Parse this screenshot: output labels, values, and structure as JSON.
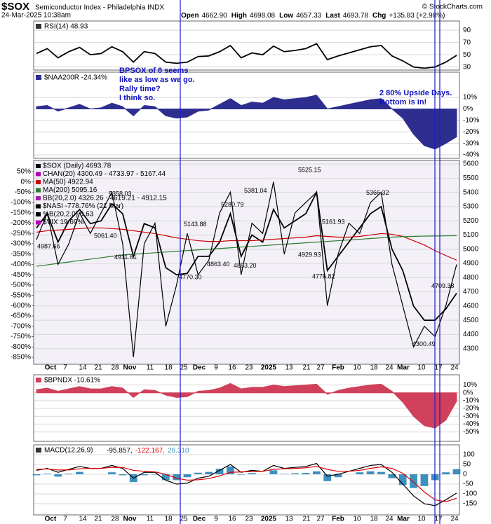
{
  "header": {
    "symbol": "$SOX",
    "name": "Semiconductor Index - Philadelphia INDX",
    "timestamp": "24-Mar-2025 10:38am",
    "quote": [
      {
        "label": "Open",
        "value": "4662.90"
      },
      {
        "label": "High",
        "value": "4698.08"
      },
      {
        "label": "Low",
        "value": "4657.33"
      },
      {
        "label": "Last",
        "value": "4693.78"
      },
      {
        "label": "Chg",
        "value": "+135.83 (+2.98%)"
      }
    ],
    "credit": "© StockCharts.com"
  },
  "date_labels": [
    "Oct",
    "7",
    "14",
    "21",
    "28",
    "Nov",
    "11",
    "18",
    "25",
    "Dec",
    "9",
    "16",
    "23",
    "2025",
    "13",
    "21",
    "27",
    "Feb",
    "10",
    "18",
    "24",
    "Mar",
    "10",
    "17",
    "24"
  ],
  "chart_data": [
    {
      "type": "line",
      "title": "RSI(14) 48.93",
      "ylim": [
        25,
        105
      ],
      "yticks": [
        30,
        50,
        70,
        90
      ],
      "grid": true,
      "series": [
        {
          "color": "#000000",
          "values": [
            52,
            60,
            45,
            55,
            62,
            50,
            52,
            63,
            55,
            38,
            55,
            52,
            38,
            36,
            38,
            47,
            48,
            55,
            65,
            45,
            53,
            50,
            64,
            55,
            57,
            60,
            68,
            42,
            48,
            53,
            58,
            63,
            65,
            48,
            40,
            30,
            28,
            30,
            38,
            48.93
          ]
        }
      ]
    },
    {
      "type": "area",
      "title": "$NAA200R -24.34%",
      "color": "#2e2e8f",
      "ylim": [
        -43,
        32
      ],
      "yticks": [
        {
          "value": 10,
          "label": "10%"
        },
        {
          "value": 0,
          "label": "0%"
        },
        {
          "value": -10,
          "label": "-10%"
        },
        {
          "value": -20,
          "label": "-20%"
        },
        {
          "value": -30,
          "label": "-30%"
        },
        {
          "value": -40,
          "label": "-40%"
        }
      ],
      "grid": true,
      "values": [
        2,
        3,
        -2,
        1,
        4,
        0,
        1,
        5,
        2,
        -6,
        3,
        2,
        -6,
        -8,
        -7,
        -2,
        -1,
        4,
        9,
        3,
        6,
        5,
        10,
        8,
        9,
        10,
        12,
        0,
        2,
        4,
        6,
        8,
        9,
        0,
        -8,
        -22,
        -32,
        -35,
        -30,
        -24.34
      ],
      "annotations": [
        {
          "lines": [
            "BPSOX of 8 seems",
            "like as low as we go.",
            "Rally time?",
            "I think so."
          ]
        },
        {
          "lines": [
            "2 80% Upside Days.",
            "Bottom is in!"
          ]
        }
      ]
    },
    {
      "type": "line",
      "ylim": [
        4190,
        5625
      ],
      "yticks": [
        4300,
        4400,
        4500,
        4600,
        4700,
        4800,
        4900,
        5000,
        5100,
        5200,
        5300,
        5400,
        5500,
        5600
      ],
      "y2lim": [
        -884,
        104
      ],
      "y2ticks": [
        {
          "value": 50,
          "label": "50%"
        },
        {
          "value": 0,
          "label": "0%"
        },
        {
          "value": -50,
          "label": "-50%"
        },
        {
          "value": -100,
          "label": "-100%"
        },
        {
          "value": -150,
          "label": "-150%"
        },
        {
          "value": -200,
          "label": "-200%"
        },
        {
          "value": -250,
          "label": "-250%"
        },
        {
          "value": -300,
          "label": "-300%"
        },
        {
          "value": -350,
          "label": "-350%"
        },
        {
          "value": -400,
          "label": "-400%"
        },
        {
          "value": -450,
          "label": "-450%"
        },
        {
          "value": -500,
          "label": "-500%"
        },
        {
          "value": -550,
          "label": "-550%"
        },
        {
          "value": -600,
          "label": "-600%"
        },
        {
          "value": -650,
          "label": "-650%"
        },
        {
          "value": -700,
          "label": "-700%"
        },
        {
          "value": -750,
          "label": "-750%"
        },
        {
          "value": -800,
          "label": "-800%"
        },
        {
          "value": -850,
          "label": "-850%"
        }
      ],
      "grid": true,
      "series": [
        {
          "name": "$SOX (Daily) 4693.78",
          "color": "#000000",
          "values": [
            5150,
            5250,
            5050,
            5200,
            5280,
            5180,
            5200,
            5320,
            5250,
            4950,
            5180,
            5150,
            4870,
            4820,
            4830,
            4950,
            4950,
            5050,
            5250,
            4950,
            5100,
            5050,
            5280,
            5150,
            5200,
            5250,
            5400,
            4850,
            4950,
            5050,
            5150,
            5250,
            5300,
            5000,
            4850,
            4600,
            4500,
            4500,
            4580,
            4690
          ]
        },
        {
          "name": "MA(50) 4922.94",
          "color": "#cc0000",
          "values": [
            5120,
            5130,
            5135,
            5140,
            5145,
            5150,
            5150,
            5145,
            5140,
            5130,
            5120,
            5110,
            5095,
            5080,
            5070,
            5060,
            5055,
            5055,
            5060,
            5060,
            5060,
            5065,
            5070,
            5075,
            5080,
            5085,
            5095,
            5090,
            5085,
            5085,
            5090,
            5100,
            5110,
            5105,
            5090,
            5060,
            5030,
            4990,
            4955,
            4922.94
          ]
        },
        {
          "name": "MA(200) 5095.16",
          "color": "#2e7d32",
          "values": [
            4880,
            4890,
            4900,
            4910,
            4920,
            4930,
            4940,
            4950,
            4960,
            4965,
            4970,
            4975,
            4980,
            4985,
            4990,
            4995,
            5000,
            5005,
            5010,
            5015,
            5020,
            5025,
            5030,
            5035,
            5040,
            5045,
            5050,
            5055,
            5060,
            5065,
            5070,
            5075,
            5080,
            5085,
            5088,
            5090,
            5092,
            5093,
            5094,
            5095.16
          ]
        },
        {
          "name": "$NASI -778.76% (21 Mar)",
          "color": "#000000",
          "axis": "y2",
          "values": [
            -280,
            -150,
            -400,
            -300,
            -150,
            -250,
            -150,
            -50,
            -300,
            -850,
            -300,
            -200,
            -700,
            -500,
            -250,
            -450,
            -380,
            -150,
            -50,
            -450,
            -200,
            -250,
            0,
            -350,
            -150,
            -100,
            -50,
            -600,
            -350,
            -200,
            -250,
            -100,
            -50,
            -400,
            -600,
            -800,
            -700,
            -750,
            -600,
            -400
          ]
        }
      ],
      "legend_extra": [
        {
          "text": "CHAN(20) 4300.49 - 4733.97 - 5167.44",
          "color": "#b000b0"
        },
        {
          "text": "BB(20,2.0) 4326.26 - 4619.21 - 4912.15",
          "color": "#a020a0"
        },
        {
          "text": "%B(20,2.0) 0.63",
          "color": "#000000"
        },
        {
          "text": "$VIX 19.69%",
          "color": "#c000c0"
        }
      ],
      "price_labels": [
        {
          "value": 5358.03,
          "label": "5358.03"
        },
        {
          "value": 5061.4,
          "label": "5061.40"
        },
        {
          "value": 4987.66,
          "label": "4987.66"
        },
        {
          "value": 4911.61,
          "label": "4911.61"
        },
        {
          "value": 4770.3,
          "label": "4770.30"
        },
        {
          "value": 5143.88,
          "label": "5143.88"
        },
        {
          "value": 4863.4,
          "label": "4863.40"
        },
        {
          "value": 5280.79,
          "label": "5280.79"
        },
        {
          "value": 4853.2,
          "label": "4853.20"
        },
        {
          "value": 5381.04,
          "label": "5381.04"
        },
        {
          "value": 5525.15,
          "label": "5525.15"
        },
        {
          "value": 4929.93,
          "label": "4929.93"
        },
        {
          "value": 5161.93,
          "label": "5161.93"
        },
        {
          "value": 4776.82,
          "label": "4776.82"
        },
        {
          "value": 5366.32,
          "label": "5366.32"
        },
        {
          "value": 4709.38,
          "label": "4709.38"
        },
        {
          "value": 4300.49,
          "label": "4300.49"
        }
      ]
    },
    {
      "type": "area",
      "title": "$BPNDX -10.61%",
      "color": "#d0405a",
      "ylim": [
        -62,
        23
      ],
      "yticks": [
        {
          "value": 10,
          "label": "10%"
        },
        {
          "value": 0,
          "label": "0%"
        },
        {
          "value": -10,
          "label": "-10%"
        },
        {
          "value": -20,
          "label": "-20%"
        },
        {
          "value": -30,
          "label": "-30%"
        },
        {
          "value": -40,
          "label": "-40%"
        },
        {
          "value": -50,
          "label": "-50%"
        }
      ],
      "grid": true,
      "values": [
        4,
        6,
        2,
        5,
        8,
        5,
        5,
        8,
        6,
        -6,
        4,
        3,
        -3,
        -6,
        -5,
        2,
        3,
        6,
        12,
        5,
        7,
        7,
        10,
        8,
        9,
        10,
        11,
        -2,
        3,
        6,
        8,
        10,
        11,
        2,
        -12,
        -30,
        -42,
        -45,
        -35,
        -10.61
      ]
    },
    {
      "type": "line",
      "title": "MACD(12,26,9)",
      "ylim": [
        -207,
        150
      ],
      "yticks": [
        100,
        50,
        0,
        -50,
        -100,
        -150
      ],
      "grid": true,
      "series": [
        {
          "name": "26.310",
          "type": "bar",
          "color": "#3d8fc0",
          "values": [
            -5,
            3,
            -12,
            3,
            12,
            0,
            0,
            10,
            -5,
            -40,
            -5,
            -2,
            -30,
            -30,
            -15,
            8,
            12,
            28,
            40,
            -2,
            6,
            0,
            20,
            2,
            5,
            7,
            15,
            -35,
            -15,
            0,
            10,
            15,
            12,
            -20,
            -55,
            -70,
            -60,
            -30,
            10,
            26.31
          ]
        },
        {
          "name": "-95.857,",
          "color": "#000000",
          "values": [
            20,
            30,
            10,
            25,
            40,
            30,
            30,
            45,
            30,
            -20,
            10,
            10,
            -30,
            -50,
            -45,
            -20,
            -10,
            20,
            50,
            10,
            20,
            15,
            45,
            30,
            35,
            40,
            55,
            -10,
            0,
            15,
            30,
            45,
            50,
            10,
            -50,
            -110,
            -150,
            -160,
            -130,
            -95.857
          ]
        },
        {
          "name": "-122.167,",
          "color": "#e00000",
          "values": [
            25,
            27,
            22,
            22,
            28,
            30,
            30,
            35,
            35,
            20,
            15,
            12,
            0,
            -20,
            -30,
            -28,
            -22,
            -8,
            10,
            12,
            14,
            15,
            25,
            28,
            30,
            33,
            40,
            25,
            15,
            15,
            20,
            30,
            38,
            30,
            5,
            -40,
            -90,
            -130,
            -140,
            -122.167
          ]
        }
      ]
    }
  ]
}
